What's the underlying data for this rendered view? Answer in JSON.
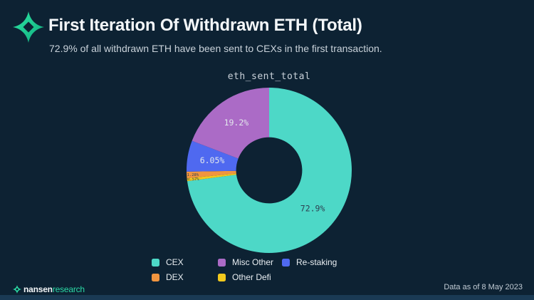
{
  "header": {
    "title": "First Iteration Of Withdrawn ETH (Total)",
    "subtitle": "72.9% of all withdrawn ETH have been sent to CEXs in the first transaction."
  },
  "footer": {
    "brand_name": "nansen",
    "brand_suffix": "research",
    "data_as_of": "Data as of 8 May 2023"
  },
  "colors": {
    "background": "#0D2233",
    "bottom_bar": "#1A3A54",
    "brand_teal": "#2CE0A7",
    "dark_label": "#2E4152",
    "light_label": "#E3E8ED"
  },
  "chart_data": {
    "type": "pie",
    "title": "eth_sent_total",
    "hole": 0.4,
    "start_angle_deg": 0,
    "direction": "clockwise",
    "legend_position": "bottom",
    "slices": [
      {
        "name": "CEX",
        "value": 72.9,
        "label": "72.9%",
        "color": "#4DD8C7"
      },
      {
        "name": "Other Defi",
        "value": 0.57,
        "label": "0.57%",
        "color": "#F2C91D"
      },
      {
        "name": "DEX",
        "value": 1.28,
        "label": "1.28%",
        "color": "#F1953F"
      },
      {
        "name": "Re-staking",
        "value": 6.05,
        "label": "6.05%",
        "color": "#4F69F0"
      },
      {
        "name": "Misc Other",
        "value": 19.2,
        "label": "19.2%",
        "color": "#AB6BC6"
      }
    ],
    "legend_order": [
      "CEX",
      "Misc Other",
      "Re-staking",
      "DEX",
      "Other Defi"
    ]
  }
}
